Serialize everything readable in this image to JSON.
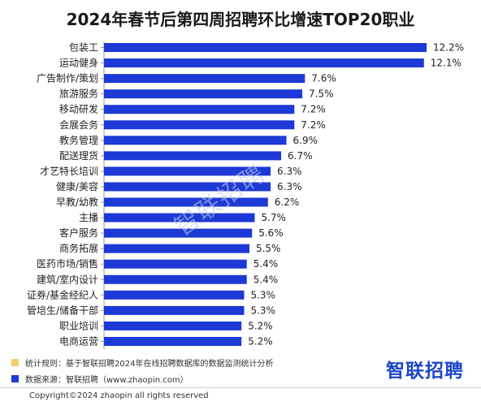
{
  "chart_data": {
    "type": "bar",
    "orientation": "horizontal",
    "title": "2024年春节后第四周招聘环比增速TOP20职业",
    "categories": [
      "包装工",
      "运动健身",
      "广告制作/策划",
      "旅游服务",
      "移动研发",
      "会展会务",
      "教务管理",
      "配送理货",
      "才艺特长培训",
      "健康/美容",
      "早教/幼教",
      "主播",
      "客户服务",
      "商务拓展",
      "医药市场/销售",
      "建筑/室内设计",
      "证券/基金经纪人",
      "管培生/储备干部",
      "职业培训",
      "电商运营"
    ],
    "values": [
      12.2,
      12.1,
      7.6,
      7.5,
      7.2,
      7.2,
      6.9,
      6.7,
      6.3,
      6.3,
      6.2,
      5.7,
      5.6,
      5.5,
      5.4,
      5.4,
      5.3,
      5.3,
      5.2,
      5.2
    ],
    "value_labels": [
      "12.2%",
      "12.1%",
      "7.6%",
      "7.5%",
      "7.2%",
      "7.2%",
      "6.9%",
      "6.7%",
      "6.3%",
      "6.3%",
      "6.2%",
      "5.7%",
      "5.6%",
      "5.5%",
      "5.4%",
      "5.4%",
      "5.3%",
      "5.3%",
      "5.2%",
      "5.2%"
    ],
    "unit": "%",
    "xlim": [
      0,
      12.2
    ],
    "grid": false,
    "bar_color": "#1d39d6"
  },
  "notes": [
    {
      "text": "统计规则：基于智联招聘2024年在线招聘数据库的数据监测统计分析",
      "color": "#f2cf72"
    },
    {
      "text": "数据来源：智联招聘（www.zhaopin.com）",
      "color": "#1d39d6"
    }
  ],
  "logo": "智联招聘",
  "watermark": "智联招聘",
  "copyright": "Copyright©2024 zhaopin all rights reserved"
}
